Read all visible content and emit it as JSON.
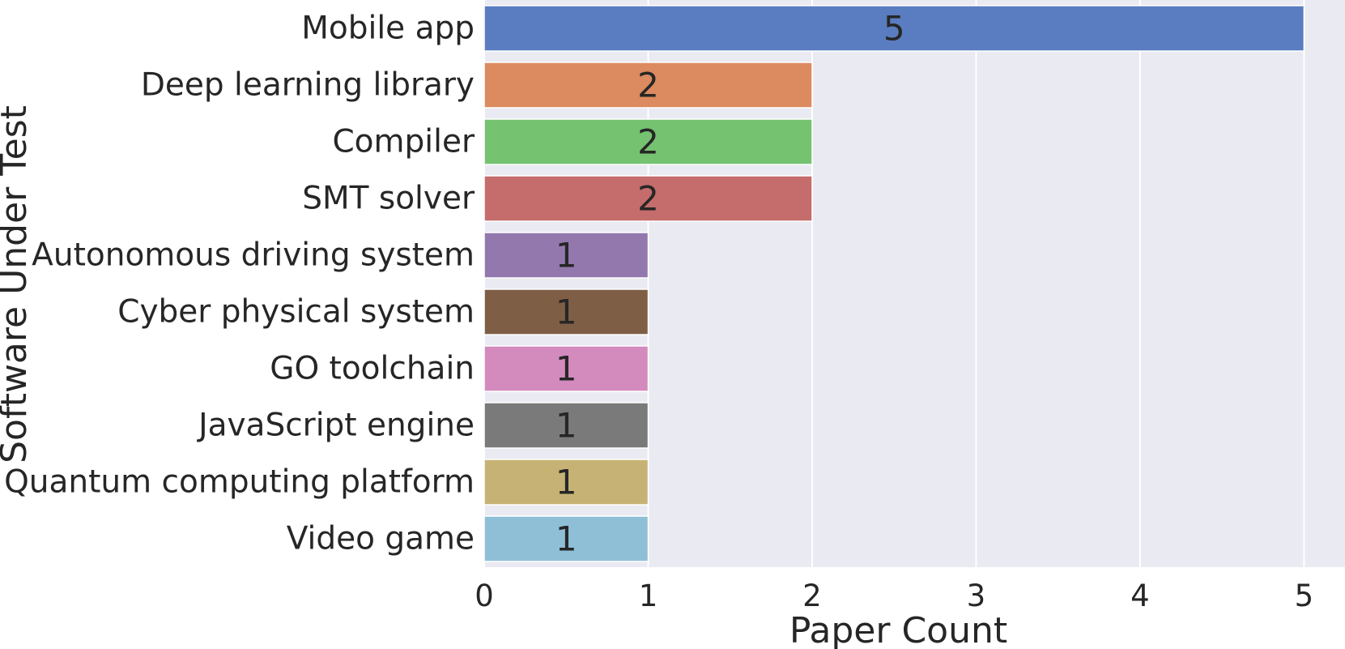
{
  "chart_data": {
    "type": "bar",
    "orientation": "horizontal",
    "categories": [
      "Mobile app",
      "Deep learning library",
      "Compiler",
      "SMT solver",
      "Autonomous driving system",
      "Cyber physical system",
      "GO toolchain",
      "JavaScript engine",
      "Quantum computing platform",
      "Video game"
    ],
    "values": [
      5,
      2,
      2,
      2,
      1,
      1,
      1,
      1,
      1,
      1
    ],
    "colors": [
      "#5a7dc1",
      "#db8b5f",
      "#75c270",
      "#c56c6c",
      "#9378ae",
      "#7f5e46",
      "#d38abd",
      "#7a7a7a",
      "#c7b275",
      "#8ebfd6"
    ],
    "xlabel": "Paper Count",
    "ylabel": "Software Under Test",
    "xlim": [
      0,
      5.25
    ],
    "xticks": [
      0,
      1,
      2,
      3,
      4,
      5
    ],
    "grid": true,
    "data_labels": true
  }
}
